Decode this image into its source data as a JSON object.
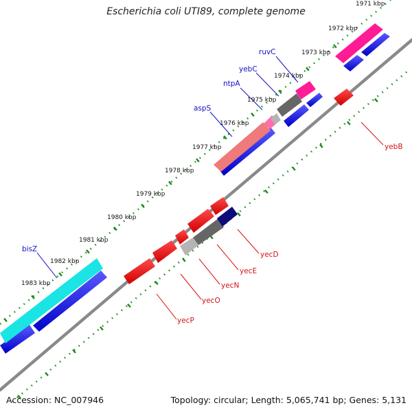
{
  "title": "Escherichia coli UTI89, complete genome",
  "footer": {
    "accession": "Accession: NC_007946",
    "summary": "Topology: circular; Length: 5,065,741 bp; Genes: 5,131"
  },
  "colors": {
    "backbone": "#8a8a8a",
    "tick": "#1a8a1a",
    "forward_label": "#1010c0",
    "reverse_label": "#d81010"
  },
  "ticks": [
    {
      "label": "1971 kbp"
    },
    {
      "label": "1972 kbp"
    },
    {
      "label": "1973 kbp"
    },
    {
      "label": "1974 kbp"
    },
    {
      "label": "1975 kbp"
    },
    {
      "label": "1976 kbp"
    },
    {
      "label": "1977 kbp"
    },
    {
      "label": "1978 kbp"
    },
    {
      "label": "1979 kbp"
    },
    {
      "label": "1980 kbp"
    },
    {
      "label": "1981 kbp"
    },
    {
      "label": "1982 kbp"
    },
    {
      "label": "1983 kbp"
    }
  ],
  "gene_labels": [
    {
      "name": "ruvC",
      "strand": "forward"
    },
    {
      "name": "yebC",
      "strand": "forward"
    },
    {
      "name": "ntpA",
      "strand": "forward"
    },
    {
      "name": "aspS",
      "strand": "forward"
    },
    {
      "name": "bisZ",
      "strand": "forward"
    },
    {
      "name": "yebB",
      "strand": "reverse"
    },
    {
      "name": "yecD",
      "strand": "reverse"
    },
    {
      "name": "yecE",
      "strand": "reverse"
    },
    {
      "name": "yecN",
      "strand": "reverse"
    },
    {
      "name": "yecO",
      "strand": "reverse"
    },
    {
      "name": "yecP",
      "strand": "reverse"
    }
  ]
}
